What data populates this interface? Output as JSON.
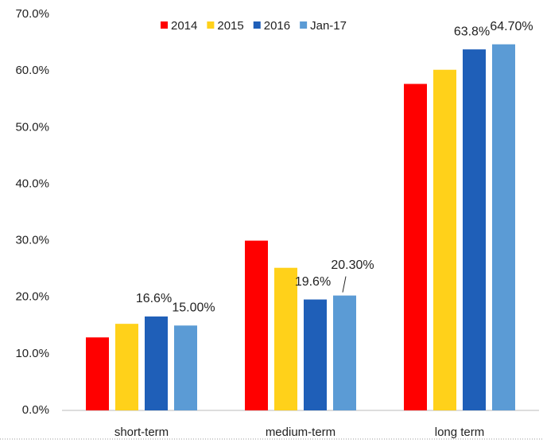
{
  "chart_data": {
    "type": "bar",
    "categories": [
      "short-term",
      "medium-term",
      "long term"
    ],
    "series": [
      {
        "name": "2014",
        "color": "#ff0000",
        "values": [
          12.9,
          30.0,
          57.7
        ]
      },
      {
        "name": "2015",
        "color": "#ffd11a",
        "values": [
          15.3,
          25.2,
          60.2
        ]
      },
      {
        "name": "2016",
        "color": "#1f5fb8",
        "values": [
          16.6,
          19.6,
          63.8
        ],
        "value_labels": [
          "16.6%",
          "19.6%",
          "63.8%"
        ]
      },
      {
        "name": "Jan-17",
        "color": "#5b9bd5",
        "values": [
          15.0,
          20.3,
          64.7
        ],
        "value_labels": [
          "15.00%",
          "20.30%",
          "64.70%"
        ]
      }
    ],
    "ylim": [
      0,
      70
    ],
    "yticks": [
      {
        "value": 0,
        "label": "0.0%"
      },
      {
        "value": 10,
        "label": "10.0%"
      },
      {
        "value": 20,
        "label": "20.0%"
      },
      {
        "value": 30,
        "label": "30.0%"
      },
      {
        "value": 40,
        "label": "40.0%"
      },
      {
        "value": 50,
        "label": "50.0%"
      },
      {
        "value": 60,
        "label": "60.0%"
      },
      {
        "value": 70,
        "label": "70.0%"
      }
    ],
    "legend": "top"
  }
}
